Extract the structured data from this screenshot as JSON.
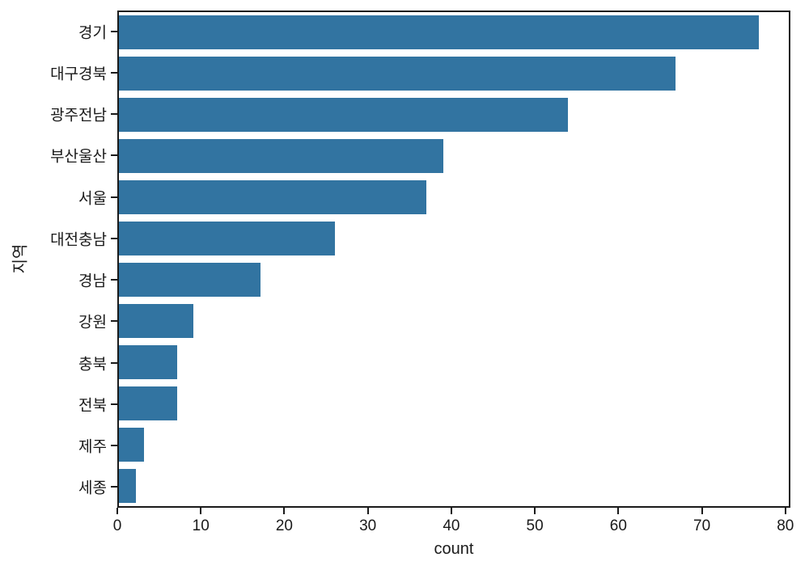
{
  "chart_data": {
    "type": "bar",
    "orientation": "horizontal",
    "title": "",
    "xlabel": "count",
    "ylabel": "지역",
    "categories": [
      "경기",
      "대구경북",
      "광주전남",
      "부산울산",
      "서울",
      "대전충남",
      "경남",
      "강원",
      "충북",
      "전북",
      "제주",
      "세종"
    ],
    "values": [
      77,
      67,
      54,
      39,
      37,
      26,
      17,
      9,
      7,
      7,
      3,
      2
    ],
    "xticks": [
      0,
      10,
      20,
      30,
      40,
      50,
      60,
      70,
      80
    ],
    "xlim": [
      0,
      80.6
    ],
    "grid": false,
    "legend": null,
    "bar_color": "#3274a1",
    "axis_color": "#1a1a1a",
    "background_color": "#ffffff"
  }
}
